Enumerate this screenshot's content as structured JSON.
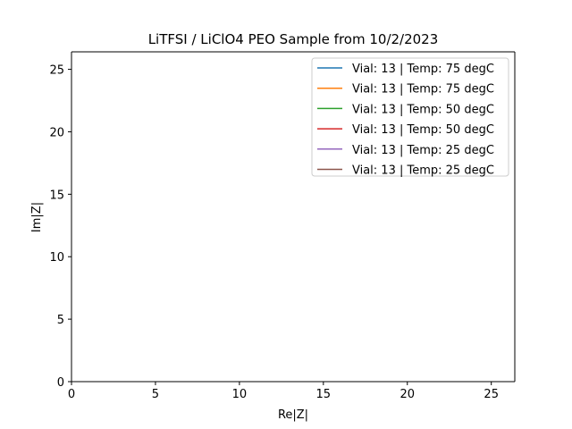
{
  "chart_data": {
    "type": "line",
    "title": "LiTFSI / LiClO4 PEO Sample from 10/2/2023",
    "xlabel": "Re|Z|",
    "ylabel": "Im|Z|",
    "xlim": [
      0,
      26.4
    ],
    "ylim": [
      0,
      26.4
    ],
    "xticks": [
      0,
      5,
      10,
      15,
      20,
      25
    ],
    "yticks": [
      0,
      5,
      10,
      15,
      20,
      25
    ],
    "grid": false,
    "legend_position": "upper right",
    "series": [
      {
        "name": "Vial: 13 | Temp: 75 degC",
        "color": "#1f77b4",
        "x": [],
        "y": []
      },
      {
        "name": "Vial: 13 | Temp: 75 degC",
        "color": "#ff7f0e",
        "x": [],
        "y": []
      },
      {
        "name": "Vial: 13 | Temp: 50 degC",
        "color": "#2ca02c",
        "x": [],
        "y": []
      },
      {
        "name": "Vial: 13 | Temp: 50 degC",
        "color": "#d62728",
        "x": [],
        "y": []
      },
      {
        "name": "Vial: 13 | Temp: 25 degC",
        "color": "#9467bd",
        "x": [],
        "y": []
      },
      {
        "name": "Vial: 13 | Temp: 25 degC",
        "color": "#8c564b",
        "x": [],
        "y": []
      }
    ]
  }
}
